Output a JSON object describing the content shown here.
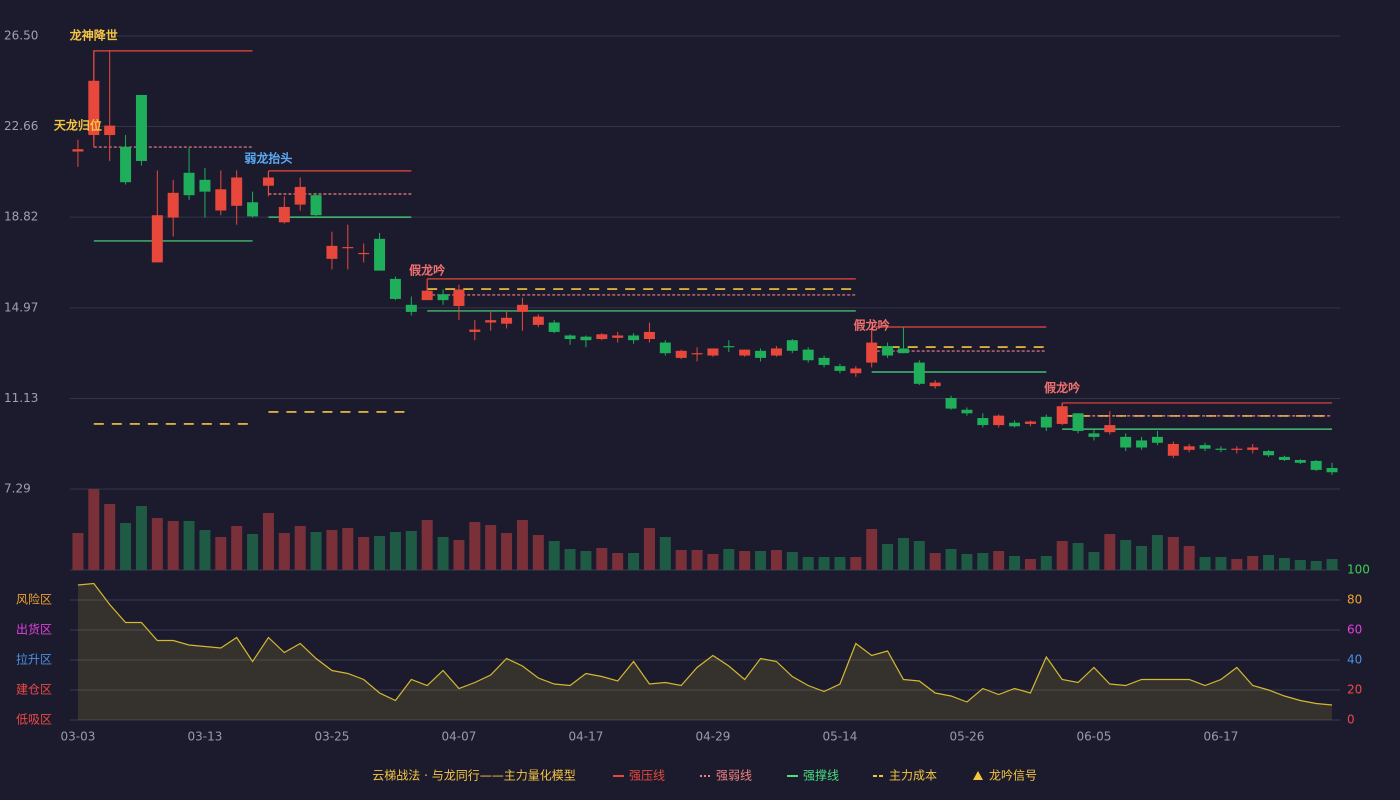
{
  "chart_data": [
    {
      "type": "candlestick",
      "categories": [
        "03-03",
        null,
        null,
        null,
        null,
        null,
        null,
        null,
        "03-13",
        null,
        null,
        null,
        null,
        null,
        null,
        null,
        "03-25",
        null,
        null,
        null,
        null,
        null,
        null,
        null,
        "04-07",
        null,
        null,
        null,
        null,
        null,
        null,
        null,
        "04-17",
        null,
        null,
        null,
        null,
        null,
        null,
        null,
        "04-29",
        null,
        null,
        null,
        null,
        null,
        null,
        null,
        "05-14",
        null,
        null,
        null,
        null,
        null,
        null,
        null,
        "05-26",
        null,
        null,
        null,
        null,
        null,
        null,
        null,
        "06-05",
        null,
        null,
        null,
        null,
        null,
        null,
        null,
        "06-17",
        null,
        null,
        null,
        null,
        null,
        null,
        null
      ],
      "open": [
        21.6,
        22.3,
        22.3,
        21.8,
        24.0,
        16.9,
        18.8,
        20.7,
        20.4,
        19.1,
        19.3,
        19.45,
        20.15,
        18.6,
        19.35,
        19.75,
        17.05,
        17.5,
        17.25,
        17.9,
        16.2,
        15.1,
        15.3,
        15.55,
        15.05,
        13.95,
        14.35,
        14.3,
        14.8,
        14.25,
        14.35,
        13.8,
        13.75,
        13.65,
        13.7,
        13.8,
        13.65,
        13.5,
        12.85,
        13.0,
        12.95,
        13.35,
        12.95,
        13.15,
        12.95,
        13.6,
        13.2,
        12.85,
        12.5,
        12.2,
        12.65,
        13.35,
        13.25,
        12.65,
        11.65,
        11.15,
        10.65,
        10.3,
        10.0,
        10.1,
        10.05,
        10.35,
        10.05,
        10.5,
        9.65,
        9.7,
        9.5,
        9.35,
        9.5,
        8.7,
        8.95,
        9.15,
        9.0,
        8.95,
        8.95,
        8.9,
        8.65,
        8.52,
        8.48,
        8.18
      ],
      "high": [
        22.1,
        25.9,
        25.9,
        22.3,
        24.0,
        20.8,
        20.4,
        21.75,
        20.9,
        20.8,
        20.8,
        19.9,
        20.7,
        19.7,
        20.5,
        19.85,
        18.2,
        18.5,
        17.7,
        18.15,
        16.3,
        15.45,
        15.95,
        15.75,
        15.95,
        14.45,
        14.8,
        14.85,
        15.4,
        14.7,
        14.45,
        13.85,
        13.8,
        13.9,
        13.95,
        13.9,
        14.35,
        13.6,
        13.2,
        13.3,
        13.25,
        13.6,
        13.2,
        13.25,
        13.35,
        13.65,
        13.3,
        12.95,
        12.6,
        12.5,
        13.6,
        13.5,
        14.15,
        12.75,
        11.9,
        11.25,
        10.75,
        10.5,
        10.45,
        10.2,
        10.2,
        10.45,
        10.95,
        10.5,
        9.8,
        10.6,
        9.65,
        9.5,
        9.75,
        9.3,
        9.2,
        9.25,
        9.1,
        9.1,
        9.2,
        8.95,
        8.7,
        8.55,
        8.52,
        8.4
      ],
      "low": [
        20.95,
        22.1,
        21.2,
        20.2,
        21.0,
        16.9,
        18.0,
        19.55,
        18.8,
        18.9,
        18.5,
        18.8,
        19.7,
        18.55,
        19.1,
        18.8,
        16.6,
        16.6,
        16.9,
        16.55,
        15.3,
        14.65,
        15.3,
        15.1,
        14.45,
        13.6,
        14.0,
        14.1,
        14.0,
        14.15,
        13.9,
        13.4,
        13.3,
        13.6,
        13.5,
        13.45,
        13.5,
        12.95,
        12.8,
        12.7,
        12.9,
        13.1,
        12.9,
        12.7,
        12.9,
        13.05,
        12.65,
        12.45,
        12.2,
        12.05,
        12.45,
        12.85,
        13.05,
        11.7,
        11.55,
        10.65,
        10.4,
        9.9,
        9.9,
        9.9,
        9.95,
        9.75,
        10.0,
        9.65,
        9.35,
        9.6,
        8.9,
        8.95,
        9.15,
        8.6,
        8.85,
        8.9,
        8.85,
        8.8,
        8.8,
        8.65,
        8.48,
        8.35,
        8.05,
        7.88
      ],
      "close": [
        21.7,
        24.6,
        22.7,
        20.3,
        21.2,
        18.9,
        19.85,
        19.75,
        19.9,
        20.0,
        20.5,
        18.85,
        20.5,
        19.25,
        20.1,
        18.9,
        17.6,
        17.55,
        17.3,
        16.55,
        15.35,
        14.8,
        15.7,
        15.3,
        15.75,
        14.05,
        14.45,
        14.55,
        15.1,
        14.6,
        13.95,
        13.65,
        13.6,
        13.85,
        13.8,
        13.6,
        13.95,
        13.05,
        13.15,
        13.05,
        13.25,
        13.3,
        13.2,
        12.85,
        13.25,
        13.15,
        12.75,
        12.55,
        12.3,
        12.4,
        13.5,
        12.95,
        13.05,
        11.75,
        11.8,
        10.7,
        10.5,
        10.0,
        10.4,
        9.95,
        10.15,
        9.9,
        10.8,
        9.75,
        9.5,
        10.0,
        9.05,
        9.05,
        9.25,
        9.2,
        9.1,
        9.0,
        8.97,
        9.0,
        9.05,
        8.72,
        8.52,
        8.4,
        8.1,
        8.0
      ],
      "volume": [
        37,
        81,
        66,
        47,
        64,
        52,
        49,
        49,
        40,
        33,
        44,
        36,
        57,
        37,
        44,
        38,
        40,
        42,
        33,
        34,
        38,
        39,
        50,
        33,
        30,
        48,
        45,
        37,
        50,
        35,
        29,
        21,
        19,
        22,
        17,
        17,
        42,
        33,
        20,
        20,
        16,
        21,
        19,
        19,
        20,
        18,
        13,
        13,
        13,
        13,
        41,
        26,
        32,
        29,
        17,
        21,
        16,
        17,
        19,
        14,
        11,
        14,
        29,
        27,
        18,
        36,
        30,
        24,
        35,
        33,
        24,
        13,
        13,
        11,
        14,
        15,
        12,
        10,
        9,
        11
      ],
      "up_color": "#e8483c",
      "down_color": "#1fae5a",
      "ylim": [
        7.29,
        26.5
      ],
      "yticks": [
        7.29,
        11.13,
        14.97,
        18.82,
        22.66,
        {
          "value": 26.5,
          "label": "26.50"
        }
      ],
      "grid": true,
      "zones": [
        {
          "from": 1,
          "to": 11,
          "pressure": 25.87,
          "weak": 21.79,
          "support": 17.81,
          "cost": 10.05
        },
        {
          "from": 12,
          "to": 21,
          "pressure": 20.78,
          "weak": 19.8,
          "support": 18.82,
          "cost": 10.56
        },
        {
          "from": 22,
          "to": 49,
          "pressure": 16.2,
          "weak": 15.52,
          "support": 14.84,
          "cost": 15.77
        },
        {
          "from": 50,
          "to": 61,
          "pressure": 14.16,
          "weak": 13.14,
          "support": 12.25,
          "cost": 13.31
        },
        {
          "from": 62,
          "to": 79,
          "pressure": 10.94,
          "weak": 10.39,
          "support": 9.83,
          "cost": 10.39
        }
      ],
      "signals": [
        {
          "index": 1,
          "label": "龙神降世",
          "color": "#f5c542"
        },
        {
          "index": 0,
          "label": "天龙归位",
          "color": "#f5c542"
        },
        {
          "index": 12,
          "label": "弱龙抬头",
          "color": "#5aaaf5"
        },
        {
          "index": 22,
          "label": "假龙吟",
          "color": "#f07070"
        },
        {
          "index": 50,
          "label": "假龙吟",
          "color": "#f07070"
        },
        {
          "index": 62,
          "label": "假龙吟",
          "color": "#f07070"
        }
      ],
      "legend_title": "云梯战法 · 与龙同行——主力量化模型",
      "legend": [
        {
          "name": "强压线",
          "kind": "pressure",
          "color": "#e8483c"
        },
        {
          "name": "强弱线",
          "kind": "weak",
          "color": "#f08080"
        },
        {
          "name": "强撑线",
          "kind": "support",
          "color": "#4ade80"
        },
        {
          "name": "主力成本",
          "kind": "cost",
          "color": "#f5c542"
        },
        {
          "name": "龙吟信号",
          "kind": "signal",
          "color": "#f5c542"
        }
      ]
    },
    {
      "type": "area",
      "values": [
        90,
        91,
        77,
        65,
        65,
        53,
        53,
        50,
        49,
        48,
        55,
        39,
        55,
        45,
        51,
        41,
        33,
        31,
        27,
        18,
        13,
        27,
        23,
        33,
        21,
        25,
        30,
        41,
        36,
        28,
        24,
        23,
        31,
        29,
        26,
        39,
        24,
        25,
        23,
        35,
        43,
        36,
        27,
        41,
        39,
        29,
        23,
        19,
        24,
        51,
        43,
        46,
        27,
        26,
        18,
        16,
        12,
        21,
        17,
        21,
        18,
        42,
        27,
        25,
        35,
        24,
        23,
        27,
        27,
        27,
        27,
        23,
        27,
        35,
        23,
        20,
        16,
        13,
        11,
        10
      ],
      "color": "#d4b830",
      "ylim": [
        0,
        100
      ],
      "yticks": [
        0,
        20,
        40,
        60,
        80,
        100
      ],
      "ytick_colors": [
        "#f04848",
        "#f04848",
        "#4a90e2",
        "#e040e0",
        "#f0a030",
        "#3ccf4e"
      ],
      "zone_labels": [
        {
          "value": 80,
          "label": "风险区",
          "color": "#f0a030"
        },
        {
          "value": 60,
          "label": "出货区",
          "color": "#e040e0"
        },
        {
          "value": 40,
          "label": "拉升区",
          "color": "#4a90e2"
        },
        {
          "value": 20,
          "label": "建仓区",
          "color": "#f04848"
        },
        {
          "value": 0,
          "label": "低吸区",
          "color": "#f04848"
        }
      ]
    }
  ]
}
